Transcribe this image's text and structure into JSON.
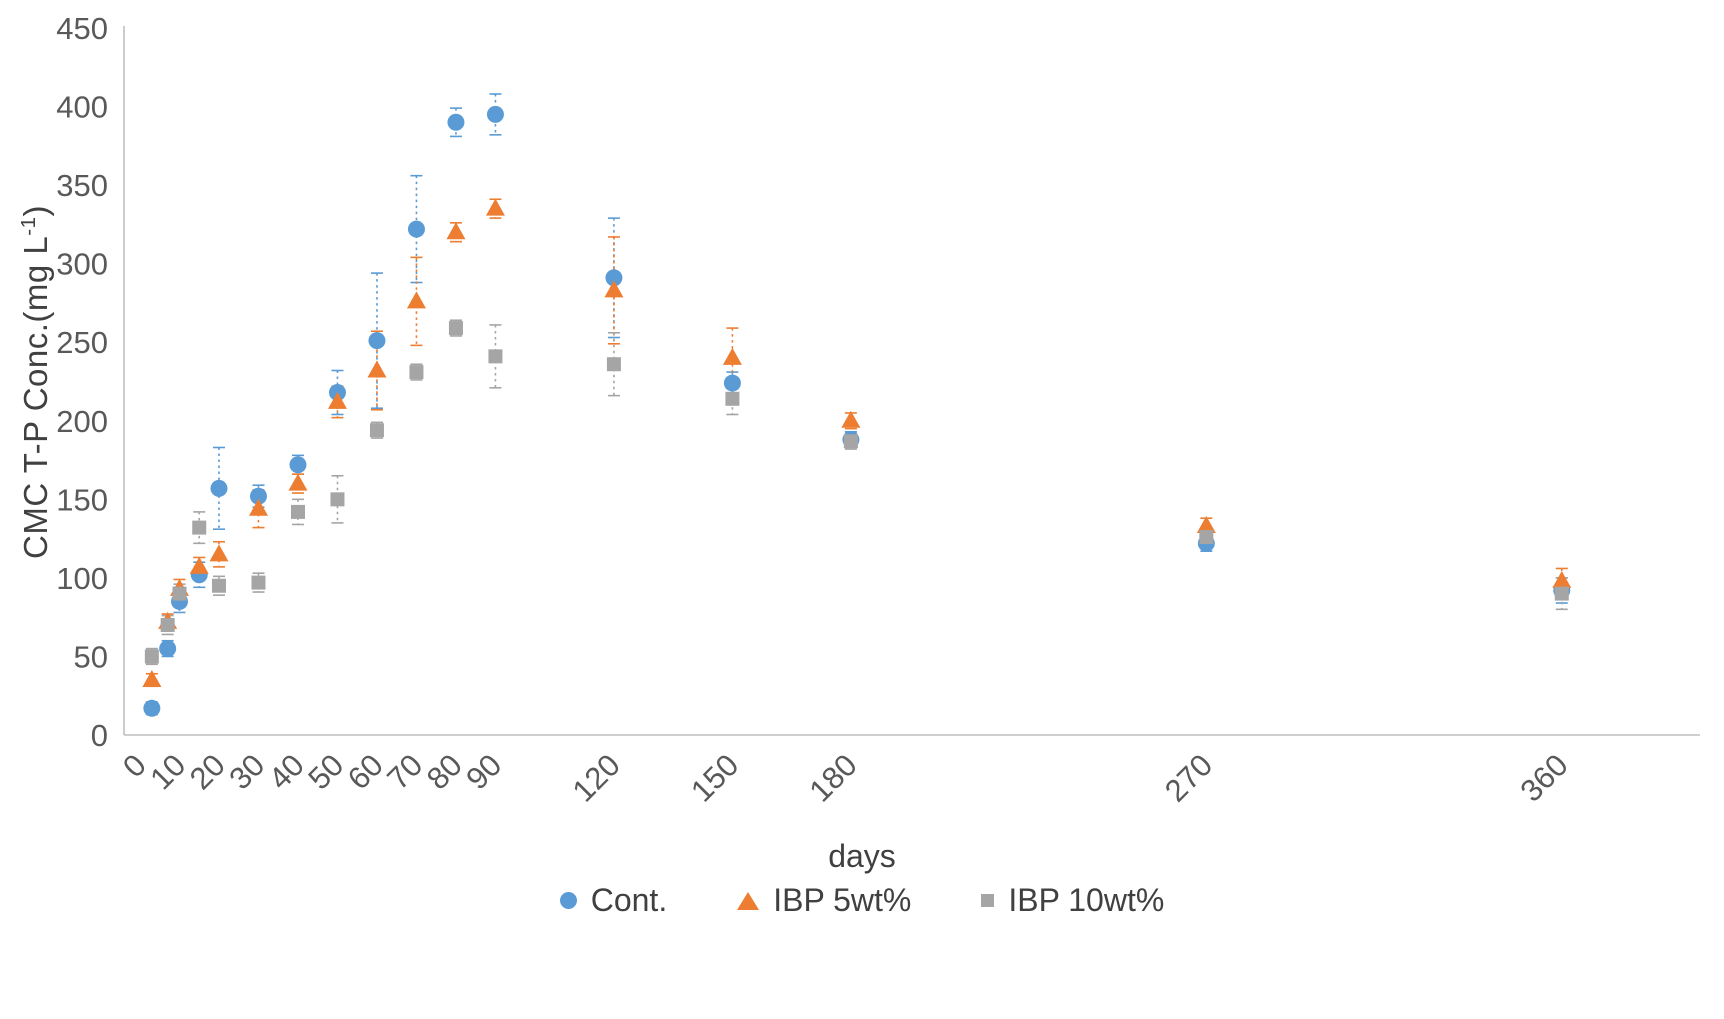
{
  "colors": {
    "axis": "#BFBFBF",
    "tick_text": "#595959",
    "axis_title_text": "#404040",
    "cont": "#5B9BD5",
    "ibp5": "#ED7D31",
    "ibp10": "#A5A5A5"
  },
  "chart_data": {
    "type": "scatter",
    "title": "",
    "xlabel": "days",
    "ylabel": "CMC T-P Conc.(mg L⁻¹)",
    "ylabel_prefix": "CMC T-P Conc.(mg L",
    "ylabel_sup": "-1",
    "ylabel_suffix": ")",
    "grid": false,
    "legend_position": "bottom",
    "xlim": [
      0,
      395
    ],
    "ylim": [
      0,
      450
    ],
    "xticks": [
      0,
      10,
      20,
      30,
      40,
      50,
      60,
      70,
      80,
      90,
      120,
      150,
      180,
      270,
      360
    ],
    "yticks": [
      0,
      50,
      100,
      150,
      200,
      250,
      300,
      350,
      400,
      450
    ],
    "x": [
      3,
      7,
      10,
      15,
      20,
      30,
      40,
      50,
      60,
      70,
      80,
      90,
      120,
      150,
      180,
      270,
      360
    ],
    "series": [
      {
        "name": "Cont.",
        "marker": "circle",
        "color": "#5B9BD5",
        "values": [
          17,
          55,
          85,
          102,
          157,
          152,
          172,
          218,
          251,
          322,
          390,
          395,
          291,
          224,
          188,
          122,
          92
        ],
        "errors": [
          4,
          5,
          7,
          8,
          26,
          7,
          6,
          14,
          43,
          34,
          9,
          13,
          38,
          7,
          5,
          5,
          8
        ]
      },
      {
        "name": "IBP 5wt%",
        "marker": "triangle",
        "color": "#ED7D31",
        "values": [
          35,
          72,
          93,
          107,
          115,
          144,
          160,
          212,
          232,
          276,
          320,
          335,
          283,
          240,
          200,
          133,
          98
        ],
        "errors": [
          4,
          5,
          6,
          6,
          8,
          12,
          6,
          10,
          25,
          28,
          6,
          6,
          34,
          19,
          5,
          5,
          8
        ]
      },
      {
        "name": "IBP 10wt%",
        "marker": "square",
        "color": "#A5A5A5",
        "values": [
          50,
          70,
          90,
          132,
          95,
          97,
          142,
          150,
          194,
          231,
          259,
          241,
          236,
          214,
          187,
          126,
          90
        ],
        "errors": [
          5,
          6,
          6,
          10,
          6,
          6,
          8,
          15,
          5,
          5,
          5,
          20,
          20,
          10,
          5,
          5,
          10
        ]
      }
    ],
    "legend": [
      "Cont.",
      "IBP 5wt%",
      "IBP 10wt%"
    ]
  }
}
